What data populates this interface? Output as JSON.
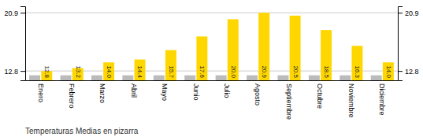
{
  "chart_data": {
    "type": "bar",
    "title": "Temperaturas Medias en pizarra",
    "categories": [
      "Enero",
      "Febrero",
      "Marzo",
      "Abril",
      "Mayo",
      "Junio",
      "Julio",
      "Agosto",
      "Septiembre",
      "Octubre",
      "Noviembre",
      "Diciembre"
    ],
    "series": [
      {
        "color": "#BBBBBB",
        "values": [
          12.2,
          12.2,
          12.2,
          12.2,
          12.2,
          12.2,
          12.2,
          12.2,
          12.2,
          12.2,
          12.2,
          12.2
        ]
      },
      {
        "color": "#FFD700",
        "values": [
          12.8,
          13.2,
          14.0,
          14.4,
          15.7,
          17.6,
          20.0,
          20.9,
          20.5,
          18.5,
          16.3,
          14.0
        ],
        "value_labels": [
          "12.8",
          "13.2",
          "14.0",
          "14.4",
          "15.7",
          "17.6",
          "20.0",
          "20.9",
          "20.5",
          "18.5",
          "16.3",
          "14.0"
        ],
        "data_labels": true
      }
    ],
    "ylim": [
      11.5,
      21.8
    ],
    "yticks": [
      12.8,
      20.9
    ],
    "grid": true
  }
}
